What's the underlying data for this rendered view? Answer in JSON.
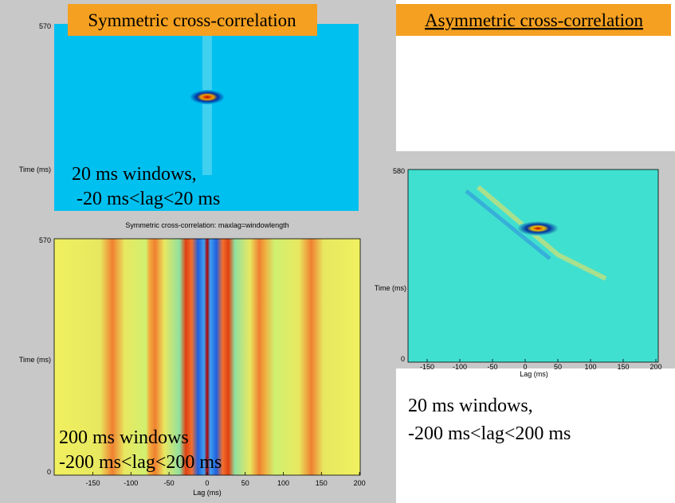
{
  "slide": {
    "left_top": {
      "title": "Symmetric cross-correlation",
      "y_top_label": "570",
      "y_axis_label": "Time (ms)",
      "caption": [
        "20 ms windows,",
        "-20 ms<lag<20 ms"
      ]
    },
    "left_bottom": {
      "plot_title": "Symmetric cross-correlation: maxlag=windowlength",
      "y_ticks": [
        "570",
        "0"
      ],
      "y_axis_label": "Time (ms)",
      "x_ticks": [
        "-150",
        "-100",
        "-50",
        "0",
        "50",
        "100",
        "150",
        "200"
      ],
      "x_axis_label": "Lag (ms)",
      "caption": [
        "200 ms windows",
        "-200 ms<lag<200 ms"
      ]
    },
    "right": {
      "title": "Asymmetric cross-correlation",
      "y_ticks": [
        "580",
        "0"
      ],
      "y_axis_label": "Time (ms)",
      "x_ticks": [
        "-150",
        "-100",
        "-50",
        "0",
        "50",
        "100",
        "150",
        "200"
      ],
      "x_axis_label": "Lag (ms)",
      "caption": [
        "20 ms windows,",
        "-200 ms<lag<200 ms"
      ]
    }
  }
}
